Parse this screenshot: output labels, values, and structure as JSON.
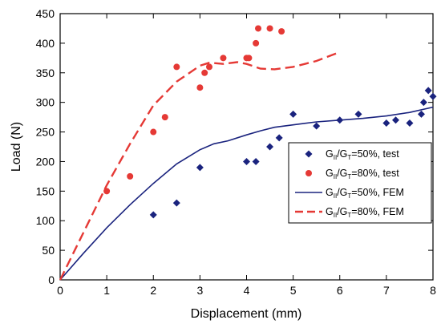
{
  "chart_data": {
    "type": "line",
    "xlabel": "Displacement (mm)",
    "ylabel": "Load (N)",
    "xlim": [
      0,
      8
    ],
    "ylim": [
      0,
      450
    ],
    "x_ticks": [
      0,
      1,
      2,
      3,
      4,
      5,
      6,
      7,
      8
    ],
    "y_ticks": [
      0,
      50,
      100,
      150,
      200,
      250,
      300,
      350,
      400,
      450
    ],
    "grid": false,
    "legend_position": "right",
    "series": [
      {
        "name": "GII/GT=50%, test",
        "legend": {
          "g1": "G",
          "s1": "II",
          "mid": "/G",
          "s2": "T",
          "rest": "=50%, test"
        },
        "kind": "scatter",
        "marker": "diamond",
        "color": "#1a237e",
        "x": [
          2.0,
          2.5,
          3.0,
          4.0,
          4.2,
          4.5,
          4.7,
          5.0,
          5.5,
          6.0,
          6.4,
          7.0,
          7.2,
          7.5,
          7.75,
          7.8,
          7.9,
          8.0
        ],
        "y": [
          110,
          130,
          190,
          200,
          200,
          225,
          240,
          280,
          260,
          270,
          280,
          265,
          270,
          265,
          280,
          300,
          320,
          310
        ]
      },
      {
        "name": "GII/GT=80%, test",
        "legend": {
          "g1": "G",
          "s1": "II",
          "mid": "/G",
          "s2": "T",
          "rest": "=80%, test"
        },
        "kind": "scatter",
        "marker": "circle",
        "color": "#e53935",
        "x": [
          1.0,
          1.5,
          2.0,
          2.25,
          2.5,
          3.0,
          3.1,
          3.2,
          3.5,
          4.0,
          4.05,
          4.2,
          4.25,
          4.5,
          4.75
        ],
        "y": [
          150,
          175,
          250,
          275,
          360,
          325,
          350,
          360,
          375,
          375,
          375,
          400,
          425,
          425,
          420
        ]
      },
      {
        "name": "GII/GT=50%, FEM",
        "legend": {
          "g1": "G",
          "s1": "II",
          "mid": "/G",
          "s2": "T",
          "rest": "=50%, FEM"
        },
        "kind": "line",
        "dash": "solid",
        "color": "#1a237e",
        "x": [
          0,
          0.5,
          1.0,
          1.5,
          2.0,
          2.5,
          3.0,
          3.3,
          3.6,
          4.0,
          4.3,
          4.6,
          5.0,
          5.5,
          6.0,
          6.5,
          7.0,
          7.5,
          8.0
        ],
        "y": [
          0,
          45,
          88,
          127,
          163,
          196,
          220,
          230,
          235,
          245,
          252,
          258,
          262,
          267,
          270,
          273,
          277,
          283,
          292
        ]
      },
      {
        "name": "GII/GT=80%, FEM",
        "legend": {
          "g1": "G",
          "s1": "II",
          "mid": "/G",
          "s2": "T",
          "rest": "=80%, FEM"
        },
        "kind": "line",
        "dash": "dashed",
        "color": "#e53935",
        "x": [
          0,
          0.5,
          1.0,
          1.5,
          2.0,
          2.5,
          3.0,
          3.2,
          3.5,
          3.8,
          4.0,
          4.3,
          4.6,
          5.0,
          5.5,
          6.0
        ],
        "y": [
          0,
          80,
          160,
          230,
          295,
          335,
          362,
          367,
          365,
          368,
          365,
          357,
          356,
          360,
          370,
          385
        ]
      }
    ]
  }
}
